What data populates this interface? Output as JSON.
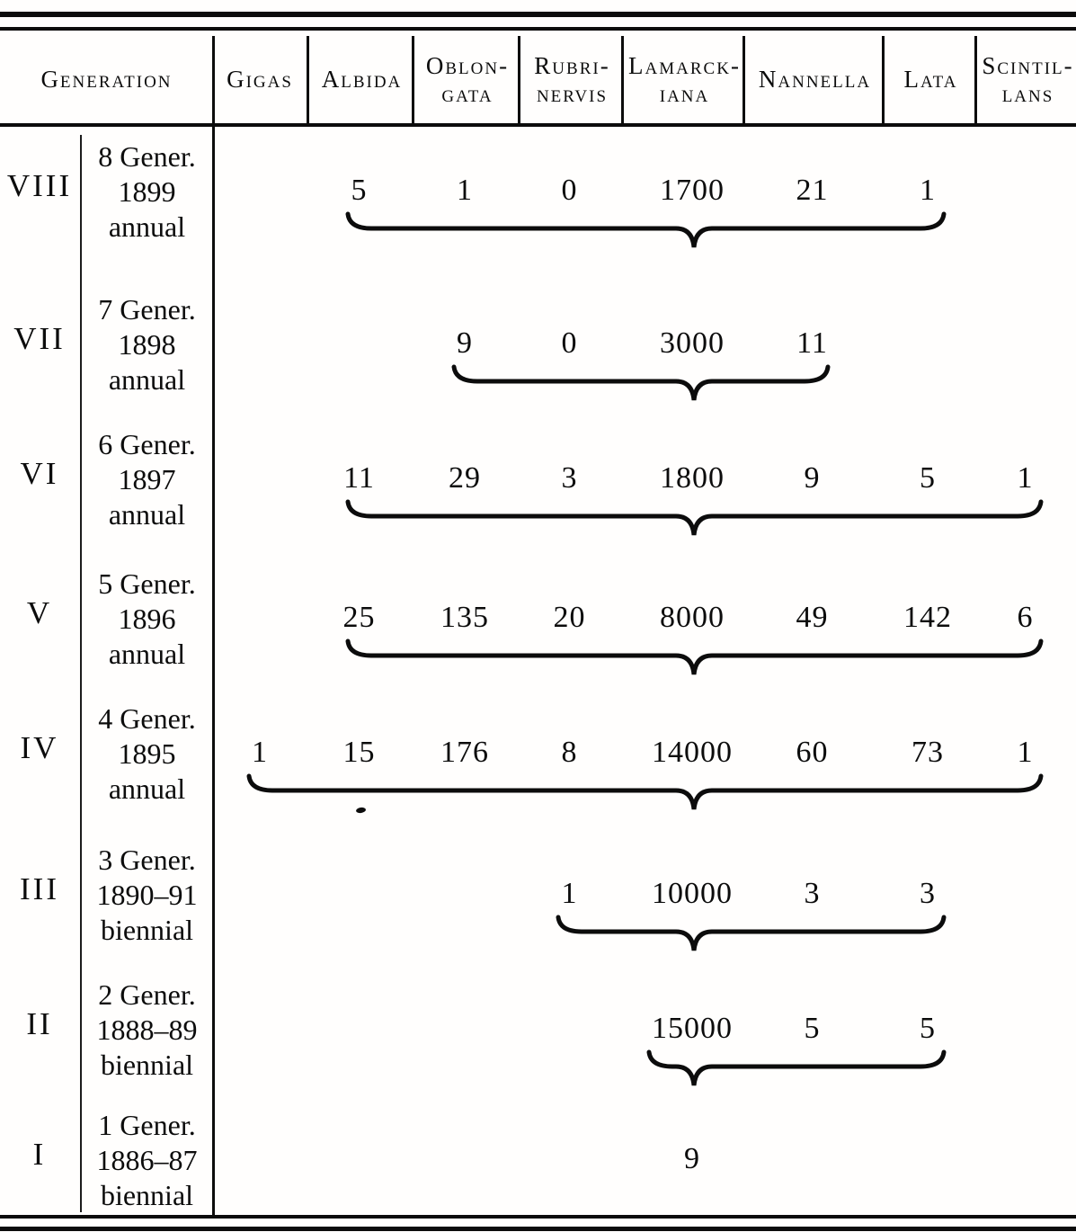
{
  "document": {
    "kind": "scanned printed table",
    "ink_color": "#0c0c0c",
    "paper_color": "#fffefd"
  },
  "table": {
    "generation_header": "Generation",
    "columns": [
      {
        "key": "gigas",
        "lines": [
          "Gigas"
        ]
      },
      {
        "key": "albida",
        "lines": [
          "Albida"
        ]
      },
      {
        "key": "oblongata",
        "lines": [
          "Oblon-",
          "gata"
        ]
      },
      {
        "key": "rubrinervis",
        "lines": [
          "Rubri-",
          "nervis"
        ]
      },
      {
        "key": "lamarckiana",
        "lines": [
          "Lamarck-",
          "iana"
        ]
      },
      {
        "key": "nannella",
        "lines": [
          "Nannella"
        ]
      },
      {
        "key": "lata",
        "lines": [
          "Lata"
        ]
      },
      {
        "key": "scintillans",
        "lines": [
          "Scintil-",
          "lans"
        ]
      }
    ],
    "rows": [
      {
        "roman": "VIII",
        "gener": "8 Gener.",
        "years": "1899",
        "habit": "annual",
        "values": {
          "albida": "5",
          "oblongata": "1",
          "rubrinervis": "0",
          "lamarckiana": "1700",
          "nannella": "21",
          "lata": "1"
        },
        "brace": {
          "from": "albida",
          "to": "lata"
        }
      },
      {
        "roman": "VII",
        "gener": "7 Gener.",
        "years": "1898",
        "habit": "annual",
        "values": {
          "oblongata": "9",
          "rubrinervis": "0",
          "lamarckiana": "3000",
          "nannella": "11"
        },
        "brace": {
          "from": "oblongata",
          "to": "nannella"
        }
      },
      {
        "roman": "VI",
        "gener": "6 Gener.",
        "years": "1897",
        "habit": "annual",
        "values": {
          "albida": "11",
          "oblongata": "29",
          "rubrinervis": "3",
          "lamarckiana": "1800",
          "nannella": "9",
          "lata": "5",
          "scintillans": "1"
        },
        "brace": {
          "from": "albida",
          "to": "scintillans"
        }
      },
      {
        "roman": "V",
        "gener": "5 Gener.",
        "years": "1896",
        "habit": "annual",
        "values": {
          "albida": "25",
          "oblongata": "135",
          "rubrinervis": "20",
          "lamarckiana": "8000",
          "nannella": "49",
          "lata": "142",
          "scintillans": "6"
        },
        "brace": {
          "from": "albida",
          "to": "scintillans"
        }
      },
      {
        "roman": "IV",
        "gener": "4 Gener.",
        "years": "1895",
        "habit": "annual",
        "values": {
          "gigas": "1",
          "albida": "15",
          "oblongata": "176",
          "rubrinervis": "8",
          "lamarckiana": "14000",
          "nannella": "60",
          "lata": "73",
          "scintillans": "1"
        },
        "brace": {
          "from": "gigas",
          "to": "scintillans"
        }
      },
      {
        "roman": "III",
        "gener": "3 Gener.",
        "years": "1890–91",
        "habit": "biennial",
        "values": {
          "rubrinervis": "1",
          "lamarckiana": "10000",
          "nannella": "3",
          "lata": "3"
        },
        "brace": {
          "from": "rubrinervis",
          "to": "lata"
        }
      },
      {
        "roman": "II",
        "gener": "2 Gener.",
        "years": "1888–89",
        "habit": "biennial",
        "values": {
          "lamarckiana": "15000",
          "nannella": "5",
          "lata": "5"
        },
        "brace": {
          "from": "lamarckiana",
          "to": "lata"
        }
      },
      {
        "roman": "I",
        "gener": "1 Gener.",
        "years": "1886–87",
        "habit": "biennial",
        "values": {
          "lamarckiana": "9"
        },
        "brace": null
      }
    ]
  }
}
